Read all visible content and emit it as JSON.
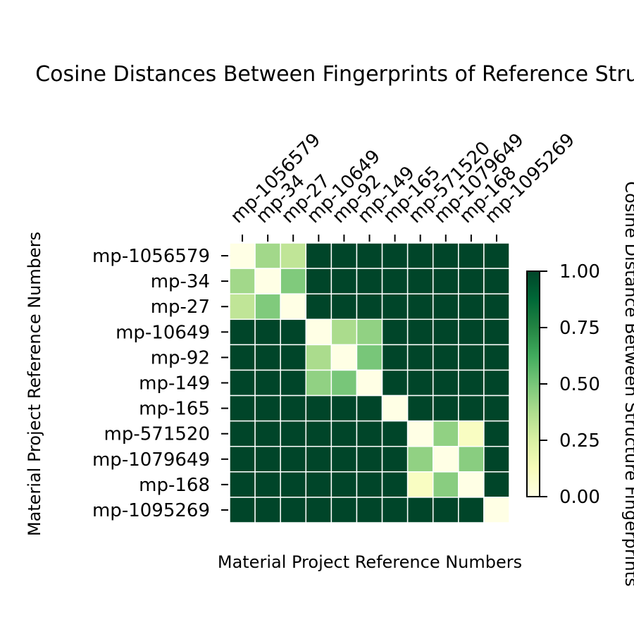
{
  "chart_data": {
    "type": "heatmap",
    "title": "Cosine Distances Between Fingerprints of Reference Structures",
    "xlabel": "Material Project Reference Numbers",
    "ylabel": "Material Project Reference Numbers",
    "colorbar_label": "Cosine Distance Between Structure Fingerprints",
    "colormap": "YlGn",
    "vmin": 0,
    "vmax": 1,
    "colorbar_ticks": [
      "0.00",
      "0.25",
      "0.50",
      "0.75",
      "1.00"
    ],
    "colorbar_tick_values": [
      0,
      0.25,
      0.5,
      0.75,
      1
    ],
    "x_labels_position": "top",
    "x_labels": [
      "mp-1056579",
      "mp-34",
      "mp-27",
      "mp-10649",
      "mp-92",
      "mp-149",
      "mp-165",
      "mp-571520",
      "mp-1079649",
      "mp-168",
      "mp-1095269"
    ],
    "y_labels": [
      "mp-1056579",
      "mp-34",
      "mp-27",
      "mp-10649",
      "mp-92",
      "mp-149",
      "mp-165",
      "mp-571520",
      "mp-1079649",
      "mp-168",
      "mp-1095269"
    ],
    "values": [
      [
        0.0,
        0.4,
        0.32,
        1,
        1,
        1,
        1,
        1,
        1,
        1,
        1
      ],
      [
        0.4,
        0.0,
        0.48,
        1,
        1,
        1,
        1,
        1,
        1,
        1,
        1
      ],
      [
        0.32,
        0.48,
        0.0,
        1,
        1,
        1,
        1,
        1,
        1,
        1,
        1
      ],
      [
        1,
        1,
        1,
        0.0,
        0.38,
        0.44,
        1,
        1,
        1,
        1,
        1
      ],
      [
        1,
        1,
        1,
        0.38,
        0.0,
        0.5,
        1,
        1,
        1,
        1,
        1
      ],
      [
        1,
        1,
        1,
        0.44,
        0.5,
        0.0,
        1,
        1,
        1,
        1,
        1
      ],
      [
        1,
        1,
        1,
        1,
        1,
        1,
        0.0,
        1,
        1,
        1,
        1
      ],
      [
        1,
        1,
        1,
        1,
        1,
        1,
        1,
        0.0,
        0.44,
        0.1,
        1
      ],
      [
        1,
        1,
        1,
        1,
        1,
        1,
        1,
        0.44,
        0.0,
        0.46,
        1
      ],
      [
        1,
        1,
        1,
        1,
        1,
        1,
        1,
        0.1,
        0.46,
        0.0,
        1
      ],
      [
        1,
        1,
        1,
        1,
        1,
        1,
        1,
        1,
        1,
        1,
        0.0
      ]
    ]
  }
}
